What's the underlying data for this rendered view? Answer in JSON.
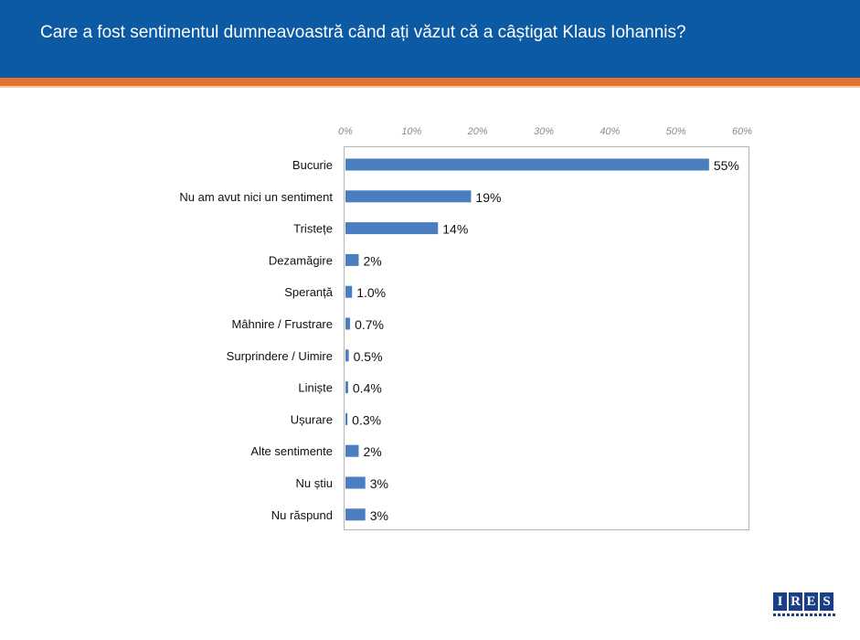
{
  "header": {
    "title": "Care a fost sentimentul dumneavoastră când ați văzut că a câștigat Klaus Iohannis?"
  },
  "colors": {
    "header_bg": "#0c5aa3",
    "header_stripe": "#e0732f",
    "bar": "#4a7ebf"
  },
  "chart_data": {
    "type": "bar",
    "orientation": "horizontal",
    "title": "",
    "xlabel": "",
    "ylabel": "",
    "xlim": [
      0,
      60
    ],
    "ticks": [
      "0%",
      "10%",
      "20%",
      "30%",
      "40%",
      "50%",
      "60%"
    ],
    "axis_position": "top",
    "grid": false,
    "categories": [
      "Bucurie",
      "Nu am avut nici un sentiment",
      "Tristețe",
      "Dezamăgire",
      "Speranță",
      "Mâhnire / Frustrare",
      "Surprindere / Uimire",
      "Liniște",
      "Ușurare",
      "Alte sentimente",
      "Nu știu",
      "Nu răspund"
    ],
    "values": [
      55,
      19,
      14,
      2,
      1.0,
      0.7,
      0.5,
      0.4,
      0.3,
      2,
      3,
      3
    ],
    "labels": [
      "55%",
      "19%",
      "14%",
      "2%",
      "1.0%",
      "0.7%",
      "0.5%",
      "0.4%",
      "0.3%",
      "2%",
      "3%",
      "3%"
    ]
  },
  "logo": {
    "text": "IRES",
    "letters": [
      "I",
      "R",
      "E",
      "S"
    ]
  }
}
